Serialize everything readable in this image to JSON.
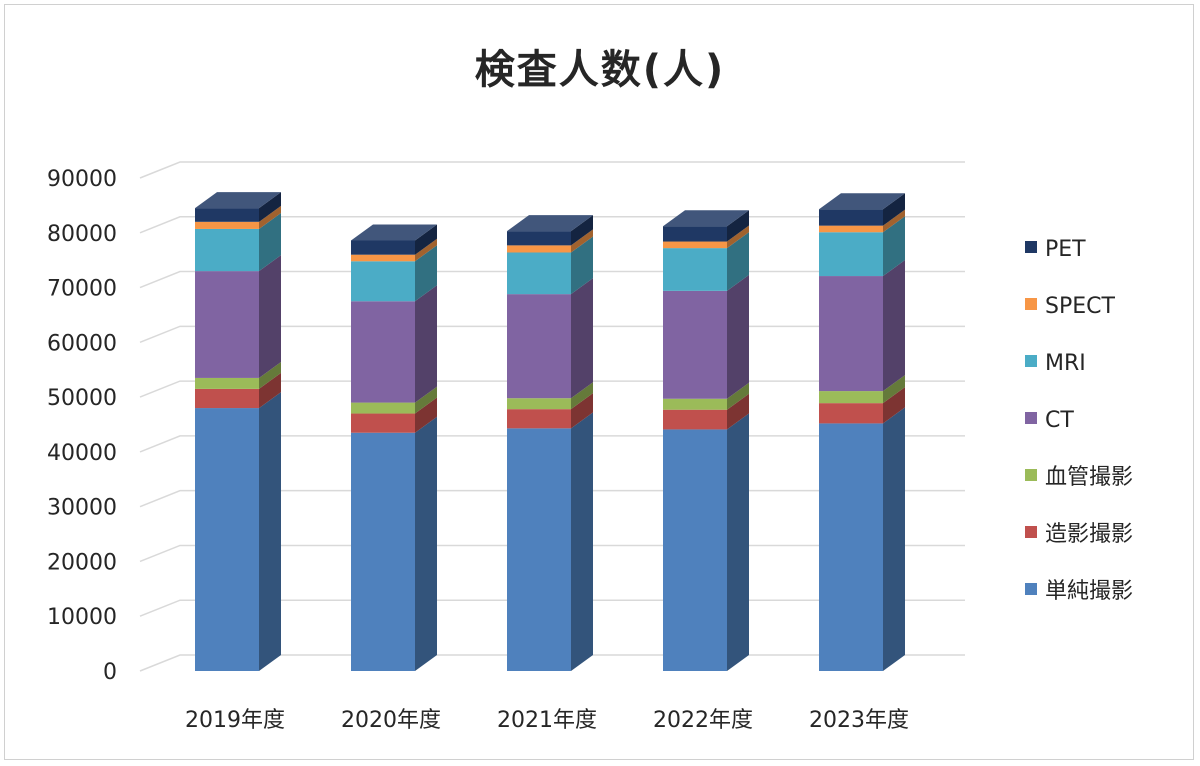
{
  "chart_data": {
    "type": "bar",
    "stacked": true,
    "three_d": true,
    "title": "検査人数(人)",
    "categories": [
      "2019年度",
      "2020年度",
      "2021年度",
      "2022年度",
      "2023年度"
    ],
    "ylim": [
      0,
      90000
    ],
    "yticks": [
      "0",
      "10000",
      "20000",
      "30000",
      "40000",
      "50000",
      "60000",
      "70000",
      "80000",
      "90000"
    ],
    "grid": true,
    "legend_position": "right",
    "series": [
      {
        "name": "単純撮影",
        "color": "#4F81BD",
        "values": [
          48000,
          43500,
          44300,
          44100,
          45200
        ]
      },
      {
        "name": "造影撮影",
        "color": "#C0504D",
        "values": [
          3500,
          3500,
          3500,
          3600,
          3700
        ]
      },
      {
        "name": "血管撮影",
        "color": "#9BBB59",
        "values": [
          2000,
          2000,
          2000,
          2000,
          2200
        ]
      },
      {
        "name": "CT",
        "color": "#8064A2",
        "values": [
          19500,
          18500,
          19000,
          19700,
          21000
        ]
      },
      {
        "name": "MRI",
        "color": "#4BACC6",
        "values": [
          7700,
          7300,
          7600,
          7800,
          8000
        ]
      },
      {
        "name": "SPECT",
        "color": "#F79646",
        "values": [
          1300,
          1200,
          1300,
          1200,
          1200
        ]
      },
      {
        "name": "PET",
        "color": "#1F3864",
        "values": [
          2500,
          2600,
          2600,
          2800,
          3000
        ]
      }
    ]
  }
}
